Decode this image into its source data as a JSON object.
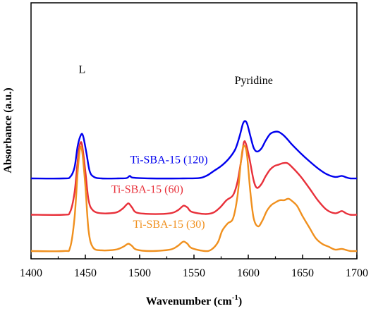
{
  "chart_data": {
    "type": "line",
    "xlabel": "Wavenumber (cm",
    "xlabel_sup": "-1",
    "xlabel_end": ")",
    "ylabel": "Absorbance (a.u.)",
    "xlim": [
      1400,
      1700
    ],
    "xticks": [
      "1400",
      "1450",
      "1500",
      "1550",
      "1600",
      "1650",
      "1700"
    ],
    "grid": false,
    "annotations": [
      {
        "text": "L",
        "x": 1447,
        "level": 2.45
      },
      {
        "text": "Pyridine",
        "x": 1605,
        "level": 2.3
      }
    ],
    "series": [
      {
        "name": "Ti-SBA-15 (120)",
        "color": "#0000ee",
        "offset": 1.0,
        "label_x": 1527,
        "label_level": 1.21,
        "x": [
          1400,
          1430,
          1436,
          1440,
          1443,
          1446,
          1448,
          1451,
          1454,
          1458,
          1465,
          1480,
          1488,
          1491,
          1494,
          1510,
          1540,
          1555,
          1562,
          1568,
          1575,
          1582,
          1588,
          1592,
          1595,
          1597,
          1599,
          1602,
          1605,
          1608,
          1612,
          1616,
          1620,
          1624,
          1628,
          1632,
          1636,
          1640,
          1648,
          1656,
          1664,
          1672,
          1680,
          1686,
          1690,
          1694,
          1700
        ],
        "values": [
          0.0,
          0.0,
          0.02,
          0.15,
          0.45,
          0.6,
          0.58,
          0.35,
          0.1,
          0.02,
          0.0,
          0.0,
          0.005,
          0.035,
          0.01,
          0.0,
          0.0,
          0.005,
          0.04,
          0.1,
          0.17,
          0.27,
          0.4,
          0.58,
          0.75,
          0.79,
          0.75,
          0.58,
          0.42,
          0.37,
          0.41,
          0.52,
          0.61,
          0.64,
          0.64,
          0.6,
          0.54,
          0.47,
          0.35,
          0.24,
          0.14,
          0.06,
          0.02,
          0.035,
          0.015,
          0.0,
          0.0
        ]
      },
      {
        "name": "Ti-SBA-15 (60)",
        "color": "#e8303a",
        "offset": 0.5,
        "label_x": 1507,
        "label_level": 0.8,
        "x": [
          1400,
          1430,
          1436,
          1440,
          1443,
          1445,
          1447,
          1450,
          1453,
          1457,
          1465,
          1478,
          1484,
          1488,
          1490,
          1493,
          1497,
          1510,
          1528,
          1535,
          1539,
          1541,
          1544,
          1548,
          1560,
          1568,
          1574,
          1580,
          1586,
          1590,
          1594,
          1596,
          1598,
          1601,
          1605,
          1608,
          1612,
          1616,
          1620,
          1624,
          1628,
          1632,
          1636,
          1640,
          1648,
          1656,
          1664,
          1672,
          1680,
          1686,
          1690,
          1694,
          1700
        ],
        "values": [
          0.0,
          0.0,
          0.04,
          0.3,
          0.75,
          0.97,
          0.96,
          0.6,
          0.2,
          0.06,
          0.02,
          0.03,
          0.08,
          0.14,
          0.155,
          0.1,
          0.03,
          0.01,
          0.02,
          0.06,
          0.11,
          0.125,
          0.1,
          0.04,
          0.01,
          0.03,
          0.1,
          0.2,
          0.27,
          0.45,
          0.8,
          1.0,
          0.97,
          0.78,
          0.47,
          0.37,
          0.42,
          0.53,
          0.62,
          0.67,
          0.69,
          0.71,
          0.71,
          0.66,
          0.53,
          0.37,
          0.2,
          0.07,
          0.02,
          0.05,
          0.02,
          0.0,
          0.0
        ]
      },
      {
        "name": "Ti-SBA-15 (30)",
        "color": "#f0901e",
        "offset": 0.0,
        "label_x": 1527,
        "label_level": 0.32,
        "x": [
          1400,
          1430,
          1436,
          1440,
          1443,
          1445,
          1447,
          1450,
          1453,
          1457,
          1465,
          1478,
          1485,
          1488,
          1490,
          1493,
          1497,
          1510,
          1528,
          1535,
          1539,
          1541,
          1544,
          1548,
          1560,
          1566,
          1572,
          1576,
          1581,
          1586,
          1590,
          1593,
          1595,
          1597,
          1599,
          1602,
          1605,
          1609,
          1613,
          1617,
          1621,
          1625,
          1629,
          1633,
          1637,
          1641,
          1645,
          1650,
          1656,
          1662,
          1668,
          1674,
          1680,
          1686,
          1690,
          1694,
          1700
        ],
        "values": [
          0.0,
          0.0,
          0.05,
          0.45,
          1.1,
          1.4,
          1.38,
          0.9,
          0.28,
          0.05,
          0.01,
          0.02,
          0.06,
          0.09,
          0.1,
          0.07,
          0.02,
          0.0,
          0.02,
          0.07,
          0.12,
          0.13,
          0.1,
          0.04,
          0.0,
          0.02,
          0.12,
          0.28,
          0.38,
          0.45,
          0.75,
          1.2,
          1.42,
          1.44,
          1.3,
          0.8,
          0.45,
          0.34,
          0.42,
          0.55,
          0.63,
          0.67,
          0.7,
          0.7,
          0.72,
          0.68,
          0.62,
          0.48,
          0.33,
          0.18,
          0.1,
          0.06,
          0.02,
          0.03,
          0.015,
          0.0,
          0.0
        ]
      }
    ]
  }
}
